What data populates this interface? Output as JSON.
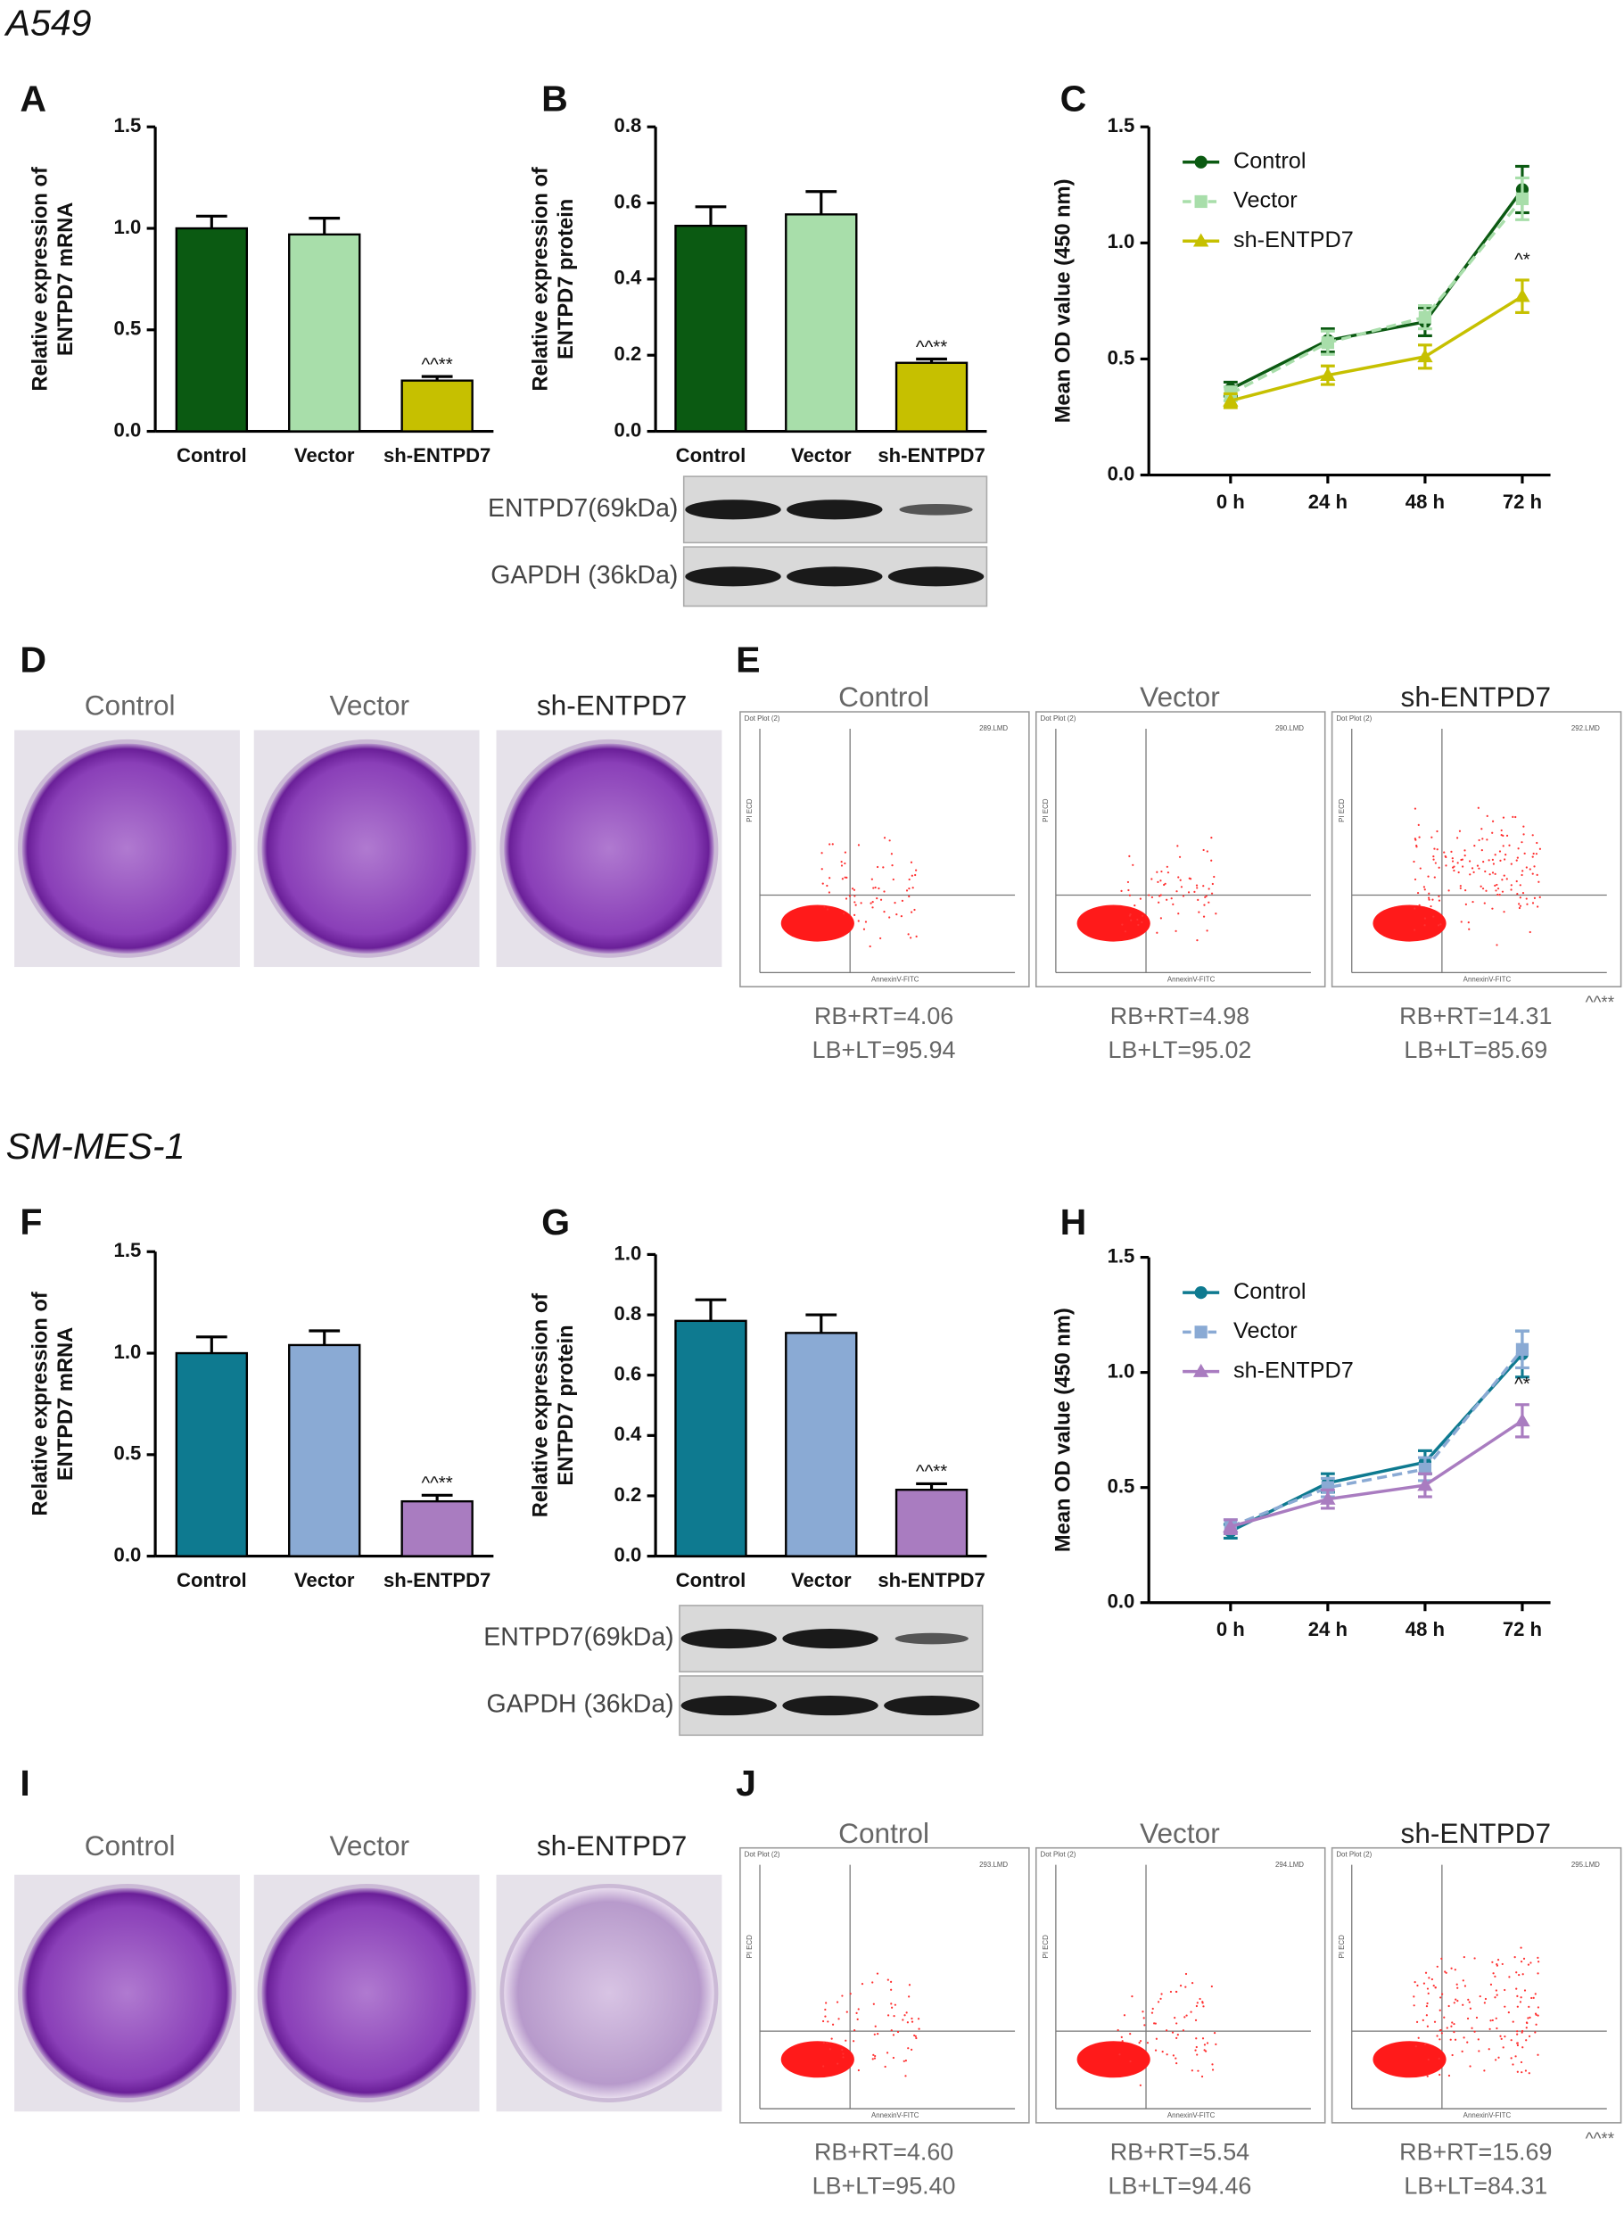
{
  "chart_data": [
    {
      "type": "bar",
      "ylabel": [
        "Relative expression of",
        "ENTPD7 mRNA"
      ],
      "categories": [
        "Control",
        "Vector",
        "sh-ENTPD7"
      ],
      "values": [
        1.0,
        0.97,
        0.25
      ],
      "errors": [
        0.06,
        0.08,
        0.02
      ],
      "colors": [
        "#0b5a12",
        "#a8deaa",
        "#c6c000"
      ],
      "annotations": [
        "^^**"
      ],
      "ylim": [
        0,
        1.5
      ],
      "yticks": [
        {
          "value": 0,
          "label": "0.0"
        },
        0.5,
        {
          "value": 1,
          "label": "1.0"
        },
        1.5
      ]
    },
    {
      "type": "bar",
      "ylabel": [
        "Relative expression of",
        "ENTPD7 protein"
      ],
      "categories": [
        "Control",
        "Vector",
        "sh-ENTPD7"
      ],
      "values": [
        0.54,
        0.57,
        0.18
      ],
      "errors": [
        0.05,
        0.06,
        0.01
      ],
      "colors": [
        "#0b5a12",
        "#a8deaa",
        "#c6c000"
      ],
      "annotations": [
        "^^**"
      ],
      "ylim": [
        0,
        0.8
      ],
      "yticks": [
        {
          "value": 0,
          "label": "0.0"
        },
        0.2,
        0.4,
        0.6,
        0.8
      ]
    },
    {
      "type": "line",
      "ylabel": [
        "Mean OD value (450 nm)"
      ],
      "categories": [
        "0 h",
        "24 h",
        "48 h",
        "72 h"
      ],
      "series": [
        {
          "name": "Control",
          "color": "#0b5a12",
          "marker": "circle",
          "dashed": false,
          "values": [
            0.37,
            0.58,
            0.66,
            1.23
          ],
          "errors": [
            0.03,
            0.05,
            0.06,
            0.1
          ]
        },
        {
          "name": "Vector",
          "color": "#a8deaa",
          "marker": "square",
          "dashed": true,
          "values": [
            0.35,
            0.57,
            0.68,
            1.19
          ],
          "errors": [
            0.03,
            0.05,
            0.05,
            0.09
          ]
        },
        {
          "name": "sh-ENTPD7",
          "color": "#c6c000",
          "marker": "triangle",
          "dashed": false,
          "values": [
            0.32,
            0.43,
            0.51,
            0.77
          ],
          "errors": [
            0.03,
            0.04,
            0.05,
            0.07
          ]
        }
      ],
      "annotations": [
        "^*"
      ],
      "legend": "upper left",
      "ylim": [
        0,
        1.5
      ],
      "yticks": [
        {
          "value": 0,
          "label": "0.0"
        },
        0.5,
        {
          "value": 1,
          "label": "1.0"
        },
        1.5
      ]
    },
    {
      "type": "bar",
      "ylabel": [
        "Relative expression of",
        "ENTPD7 mRNA"
      ],
      "categories": [
        "Control",
        "Vector",
        "sh-ENTPD7"
      ],
      "values": [
        1.0,
        1.04,
        0.27
      ],
      "errors": [
        0.08,
        0.07,
        0.03
      ],
      "colors": [
        "#0e7a90",
        "#8aaad4",
        "#a97cc0"
      ],
      "annotations": [
        "^^**"
      ],
      "ylim": [
        0,
        1.5
      ],
      "yticks": [
        {
          "value": 0,
          "label": "0.0"
        },
        0.5,
        {
          "value": 1,
          "label": "1.0"
        },
        1.5
      ]
    },
    {
      "type": "bar",
      "ylabel": [
        "Relative expression of",
        "ENTPD7 protein"
      ],
      "categories": [
        "Control",
        "Vector",
        "sh-ENTPD7"
      ],
      "values": [
        0.78,
        0.74,
        0.22
      ],
      "errors": [
        0.07,
        0.06,
        0.02
      ],
      "colors": [
        "#0e7a90",
        "#8aaad4",
        "#a97cc0"
      ],
      "annotations": [
        "^^**"
      ],
      "ylim": [
        0,
        1.0
      ],
      "yticks": [
        {
          "value": 0,
          "label": "0.0"
        },
        0.2,
        0.4,
        0.6,
        0.8,
        {
          "value": 1,
          "label": "1.0"
        }
      ]
    },
    {
      "type": "line",
      "ylabel": [
        "Mean OD value (450 nm)"
      ],
      "categories": [
        "0 h",
        "24 h",
        "48 h",
        "72 h"
      ],
      "series": [
        {
          "name": "Control",
          "color": "#0e7a90",
          "marker": "circle",
          "dashed": false,
          "values": [
            0.31,
            0.52,
            0.61,
            1.08
          ],
          "errors": [
            0.03,
            0.04,
            0.05,
            0.1
          ]
        },
        {
          "name": "Vector",
          "color": "#8aaad4",
          "marker": "square",
          "dashed": true,
          "values": [
            0.33,
            0.5,
            0.58,
            1.1
          ],
          "errors": [
            0.03,
            0.04,
            0.05,
            0.08
          ]
        },
        {
          "name": "sh-ENTPD7",
          "color": "#a97cc0",
          "marker": "triangle",
          "dashed": false,
          "values": [
            0.33,
            0.45,
            0.51,
            0.79
          ],
          "errors": [
            0.03,
            0.04,
            0.05,
            0.07
          ]
        }
      ],
      "annotations": [
        "^*"
      ],
      "legend": "upper left",
      "ylim": [
        0,
        1.5
      ],
      "yticks": [
        {
          "value": 0,
          "label": "0.0"
        },
        0.5,
        {
          "value": 1,
          "label": "1.0"
        },
        1.5
      ]
    }
  ],
  "sections": [
    {
      "title": "A549",
      "panels": [
        "A",
        "B",
        "C",
        "D",
        "E"
      ],
      "blot_labels": [
        "ENTPD7(69kDa)",
        "GAPDH (36kDa)"
      ],
      "colony_groups": [
        "Control",
        "Vector",
        "sh-ENTPD7"
      ],
      "flow": [
        {
          "group": "Control",
          "plot_title": "Dot Plot (2)",
          "file": "289.LMD",
          "y_axis": "PI ECD",
          "x_axis": "AnnexinV-FITC",
          "stats": [
            "RB+RT=4.06",
            "LB+LT=95.94"
          ]
        },
        {
          "group": "Vector",
          "plot_title": "Dot Plot (2)",
          "file": "290.LMD",
          "y_axis": "PI ECD",
          "x_axis": "AnnexinV-FITC",
          "stats": [
            "RB+RT=4.98",
            "LB+LT=95.02"
          ]
        },
        {
          "group": "sh-ENTPD7",
          "plot_title": "Dot Plot (2)",
          "file": "292.LMD",
          "y_axis": "PI ECD",
          "x_axis": "AnnexinV-FITC",
          "stats": [
            "RB+RT=14.31",
            "LB+LT=85.69"
          ]
        }
      ],
      "flow_annotation": "^^**"
    },
    {
      "title": "SM-MES-1",
      "panels": [
        "F",
        "G",
        "H",
        "I",
        "J"
      ],
      "blot_labels": [
        "ENTPD7(69kDa)",
        "GAPDH (36kDa)"
      ],
      "colony_groups": [
        "Control",
        "Vector",
        "sh-ENTPD7"
      ],
      "flow": [
        {
          "group": "Control",
          "plot_title": "Dot Plot (2)",
          "file": "293.LMD",
          "y_axis": "PI ECD",
          "x_axis": "AnnexinV-FITC",
          "stats": [
            "RB+RT=4.60",
            "LB+LT=95.40"
          ]
        },
        {
          "group": "Vector",
          "plot_title": "Dot Plot (2)",
          "file": "294.LMD",
          "y_axis": "PI ECD",
          "x_axis": "AnnexinV-FITC",
          "stats": [
            "RB+RT=5.54",
            "LB+LT=94.46"
          ]
        },
        {
          "group": "sh-ENTPD7",
          "plot_title": "Dot Plot (2)",
          "file": "295.LMD",
          "y_axis": "PI ECD",
          "x_axis": "AnnexinV-FITC",
          "stats": [
            "RB+RT=15.69",
            "LB+LT=84.31"
          ]
        }
      ],
      "flow_annotation": "^^**"
    }
  ]
}
